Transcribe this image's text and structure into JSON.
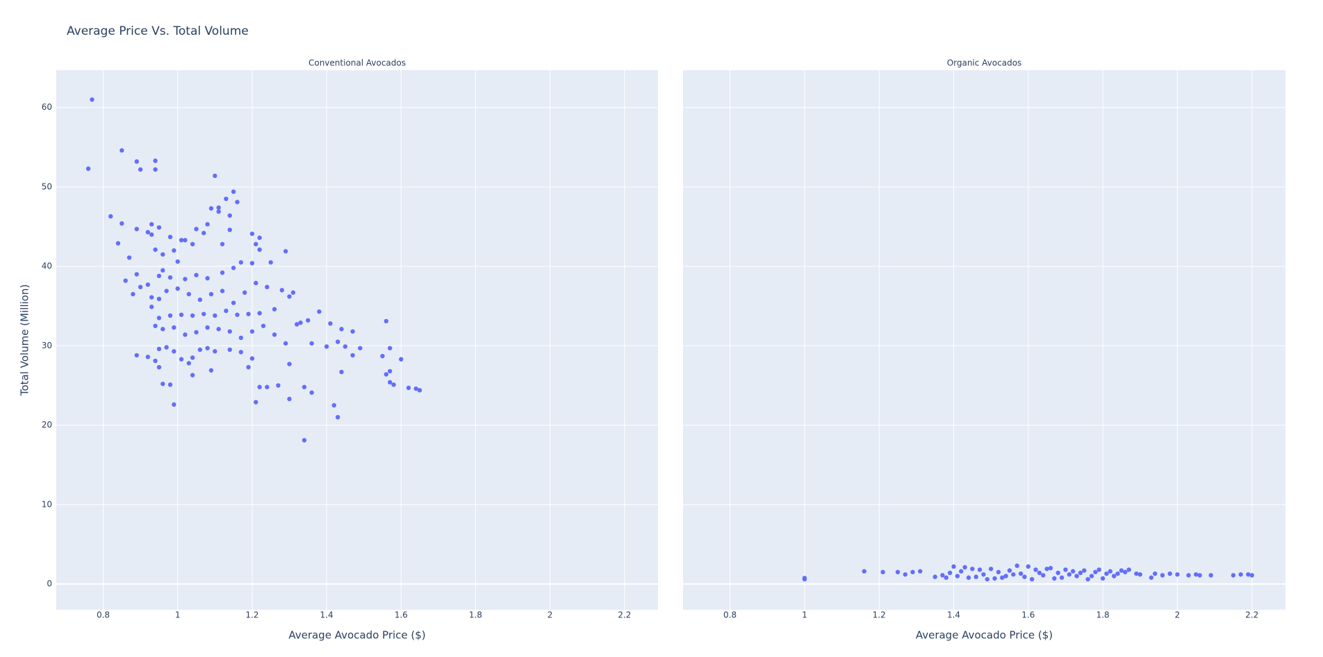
{
  "title": "Average Price Vs. Total Volume",
  "chart_data": [
    {
      "type": "scatter",
      "title": "Conventional Avocados",
      "x_label": "Average Avocado Price ($)",
      "y_label": "Total Volume (Million)",
      "color": "#636efa",
      "grid": true,
      "xlim": [
        0.674,
        2.29
      ],
      "xticks": [
        0.8,
        1,
        1.2,
        1.4,
        1.6,
        1.8,
        2,
        2.2
      ],
      "ylim": [
        -3.24,
        64.7
      ],
      "yticks": [
        0,
        10,
        20,
        30,
        40,
        50,
        60
      ],
      "x": [
        0.77,
        0.76,
        0.85,
        0.89,
        0.9,
        0.94,
        0.94,
        1.1,
        0.82,
        0.85,
        0.84,
        0.87,
        0.86,
        0.88,
        0.89,
        0.89,
        0.9,
        0.92,
        0.93,
        0.93,
        0.95,
        0.94,
        0.96,
        0.96,
        0.98,
        0.99,
        1.0,
        1.01,
        1.02,
        1.04,
        1.05,
        1.07,
        1.08,
        1.09,
        1.11,
        1.11,
        1.13,
        1.15,
        1.16,
        1.14,
        1.14,
        1.12,
        1.2,
        1.22,
        1.22,
        1.21,
        1.29,
        1.25,
        1.2,
        1.17,
        1.15,
        1.12,
        1.08,
        1.05,
        1.02,
        0.98,
        0.95,
        0.92,
        0.93,
        0.95,
        0.97,
        1.0,
        1.03,
        1.06,
        1.09,
        1.12,
        1.15,
        1.18,
        1.21,
        1.24,
        1.28,
        1.31,
        1.3,
        1.26,
        1.22,
        1.19,
        1.16,
        1.13,
        1.1,
        1.07,
        1.04,
        1.01,
        0.98,
        0.95,
        0.93,
        0.94,
        0.96,
        0.99,
        1.02,
        1.05,
        1.08,
        1.11,
        1.14,
        1.17,
        1.2,
        1.23,
        1.26,
        1.29,
        1.32,
        1.33,
        1.35,
        1.38,
        1.41,
        1.44,
        1.47,
        1.36,
        1.4,
        1.43,
        1.45,
        1.49,
        1.47,
        1.55,
        1.56,
        1.57,
        1.6,
        1.56,
        1.57,
        1.57,
        1.58,
        1.62,
        1.64,
        1.65,
        1.44,
        1.42,
        1.43,
        1.36,
        1.34,
        1.3,
        1.3,
        1.34,
        1.27,
        1.24,
        1.22,
        1.21,
        1.19,
        1.2,
        1.17,
        1.14,
        1.1,
        1.08,
        1.06,
        1.04,
        1.03,
        1.04,
        1.09,
        1.01,
        0.99,
        0.97,
        0.95,
        0.94,
        0.92,
        0.89,
        0.95,
        0.96,
        0.98,
        0.99
      ],
      "y": [
        61,
        52.3,
        54.6,
        53.2,
        52.2,
        53.3,
        52.2,
        51.4,
        46.3,
        45.4,
        42.9,
        41.1,
        38.2,
        36.5,
        44.7,
        39,
        37.4,
        44.3,
        45.3,
        44,
        44.9,
        42.1,
        41.5,
        39.5,
        43.7,
        42,
        40.6,
        43.3,
        43.3,
        42.8,
        44.7,
        44.2,
        45.3,
        47.3,
        47.4,
        46.9,
        48.5,
        49.4,
        48.1,
        46.4,
        44.6,
        42.8,
        44.1,
        43.6,
        42.1,
        42.8,
        41.9,
        40.5,
        40.4,
        40.5,
        39.8,
        39.2,
        38.5,
        38.9,
        38.4,
        38.6,
        38.8,
        37.7,
        36.1,
        35.9,
        36.9,
        37.2,
        36.5,
        35.8,
        36.5,
        36.9,
        35.4,
        36.7,
        37.9,
        37.4,
        37,
        36.7,
        36.2,
        34.6,
        34.1,
        34,
        33.9,
        34.4,
        33.8,
        34,
        33.8,
        33.9,
        33.8,
        33.5,
        34.9,
        32.5,
        32.1,
        32.3,
        31.4,
        31.7,
        32.3,
        32.1,
        31.8,
        31,
        31.8,
        32.5,
        31.4,
        30.3,
        32.7,
        32.9,
        33.2,
        34.3,
        32.8,
        32.1,
        31.8,
        30.3,
        29.9,
        30.5,
        29.9,
        29.7,
        28.8,
        28.7,
        33.1,
        29.7,
        28.3,
        26.4,
        26.8,
        25.4,
        25.1,
        24.7,
        24.6,
        24.4,
        26.7,
        22.5,
        21,
        24.1,
        24.8,
        27.7,
        23.3,
        18.1,
        25,
        24.8,
        24.8,
        22.9,
        27.3,
        28.4,
        29.2,
        29.5,
        29.3,
        29.7,
        29.5,
        28.5,
        27.8,
        26.3,
        26.9,
        28.3,
        29.3,
        29.8,
        29.6,
        28.1,
        28.6,
        28.8,
        27.3,
        25.2,
        25.1,
        22.6
      ]
    },
    {
      "type": "scatter",
      "title": "Organic Avocados",
      "x_label": "Average Avocado Price ($)",
      "color": "#636efa",
      "grid": true,
      "xlim": [
        0.674,
        2.29
      ],
      "xticks": [
        0.8,
        1,
        1.2,
        1.4,
        1.6,
        1.8,
        2,
        2.2
      ],
      "ylim": [
        -3.24,
        64.7
      ],
      "yticks": [
        0,
        10,
        20,
        30,
        40,
        50,
        60
      ],
      "x": [
        1.0,
        1.0,
        1.16,
        1.21,
        1.25,
        1.27,
        1.29,
        1.31,
        1.35,
        1.37,
        1.39,
        1.4,
        1.42,
        1.43,
        1.45,
        1.47,
        1.48,
        1.5,
        1.51,
        1.52,
        1.54,
        1.55,
        1.57,
        1.58,
        1.6,
        1.61,
        1.62,
        1.64,
        1.65,
        1.66,
        1.68,
        1.69,
        1.7,
        1.72,
        1.73,
        1.75,
        1.76,
        1.78,
        1.79,
        1.8,
        1.82,
        1.84,
        1.85,
        1.87,
        1.89,
        1.9,
        1.93,
        1.94,
        1.96,
        1.98,
        2.0,
        2.03,
        2.05,
        2.06,
        2.09,
        2.15,
        2.17,
        2.19,
        2.2,
        1.44,
        1.46,
        1.49,
        1.53,
        1.56,
        1.59,
        1.63,
        1.67,
        1.71,
        1.74,
        1.77,
        1.81,
        1.83,
        1.86,
        1.41,
        1.38
      ],
      "y": [
        0.6,
        0.75,
        1.6,
        1.5,
        1.5,
        1.2,
        1.5,
        1.6,
        0.9,
        1.1,
        1.4,
        2.2,
        1.6,
        2.1,
        1.9,
        1.8,
        1.2,
        1.9,
        0.7,
        1.5,
        1.0,
        1.7,
        2.3,
        1.3,
        2.2,
        0.6,
        1.8,
        1.1,
        1.9,
        2.0,
        1.4,
        0.8,
        1.8,
        1.6,
        1.0,
        1.7,
        0.6,
        1.5,
        1.8,
        0.7,
        1.6,
        1.3,
        1.7,
        1.8,
        1.3,
        1.2,
        0.8,
        1.3,
        1.1,
        1.3,
        1.2,
        1.1,
        1.2,
        1.1,
        1.1,
        1.1,
        1.2,
        1.2,
        1.1,
        0.8,
        0.9,
        0.6,
        0.8,
        1.2,
        0.9,
        1.4,
        0.7,
        1.2,
        1.4,
        1.0,
        1.3,
        1.0,
        1.5,
        1.0,
        0.8
      ]
    }
  ]
}
